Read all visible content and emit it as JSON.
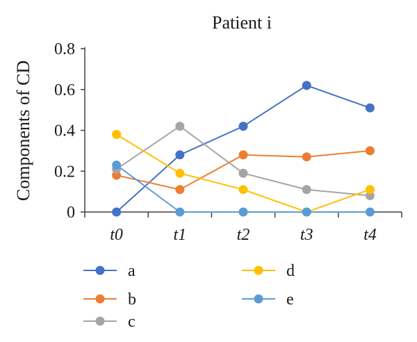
{
  "chart_data": {
    "type": "line",
    "title": "Patient i",
    "xlabel": "",
    "ylabel": "Components of CD",
    "categories": [
      "t0",
      "t1",
      "t2",
      "t3",
      "t4"
    ],
    "ylim": [
      0,
      0.8
    ],
    "yticks": [
      "0",
      "0.2",
      "0.4",
      "0.6",
      "0.8"
    ],
    "grid": false,
    "legend_position": "bottom",
    "series": [
      {
        "name": "a",
        "color": "#4472C4",
        "values": [
          0,
          0.28,
          0.42,
          0.62,
          0.51
        ]
      },
      {
        "name": "b",
        "color": "#ED7D31",
        "values": [
          0.18,
          0.11,
          0.28,
          0.27,
          0.3
        ]
      },
      {
        "name": "c",
        "color": "#A5A5A5",
        "values": [
          0.21,
          0.42,
          0.19,
          0.11,
          0.08
        ]
      },
      {
        "name": "d",
        "color": "#FFC000",
        "values": [
          0.38,
          0.19,
          0.11,
          0.0,
          0.11
        ]
      },
      {
        "name": "e",
        "color": "#5B9BD5",
        "values": [
          0.23,
          0,
          0,
          0,
          0
        ]
      }
    ]
  }
}
